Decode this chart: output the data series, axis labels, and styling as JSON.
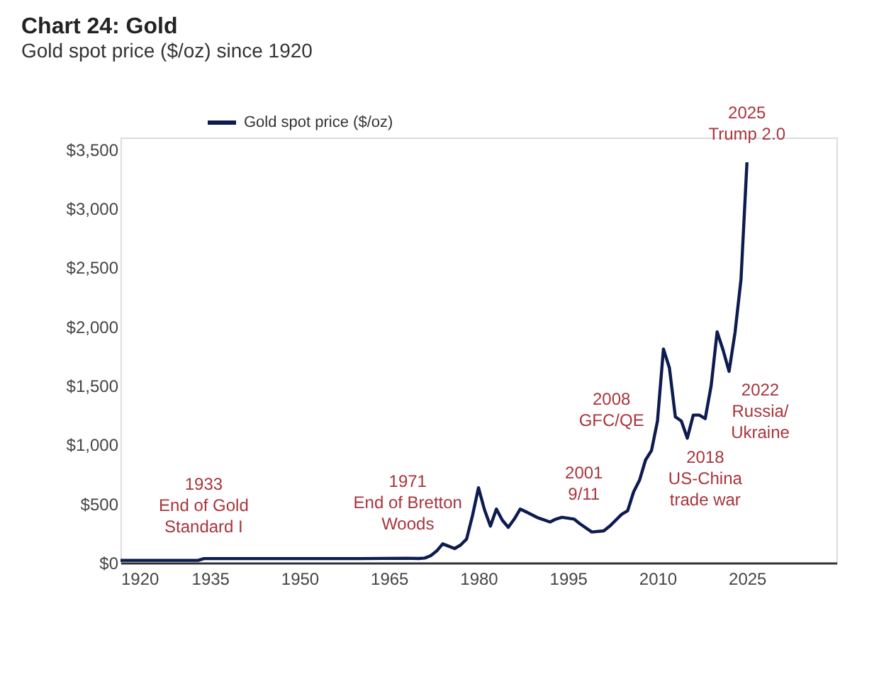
{
  "chart_data": {
    "type": "line",
    "title": "Chart 24: Gold",
    "subtitle": "Gold spot price ($/oz) since 1920",
    "x": [
      1920,
      1925,
      1930,
      1933,
      1934,
      1940,
      1950,
      1960,
      1968,
      1970,
      1971,
      1972,
      1973,
      1974,
      1975,
      1976,
      1977,
      1978,
      1979,
      1980,
      1981,
      1982,
      1983,
      1984,
      1985,
      1986,
      1987,
      1988,
      1990,
      1992,
      1993,
      1994,
      1996,
      1997,
      1999,
      2001,
      2002,
      2003,
      2004,
      2005,
      2006,
      2007,
      2008,
      2009,
      2010,
      2011,
      2012,
      2013,
      2014,
      2015,
      2016,
      2017,
      2018,
      2019,
      2020,
      2021,
      2022,
      2023,
      2024,
      2025
    ],
    "series": [
      {
        "name": "Gold spot price ($/oz)",
        "color": "#0d1b4f",
        "values": [
          20,
          20,
          20,
          20,
          35,
          35,
          35,
          35,
          38,
          36,
          40,
          60,
          100,
          160,
          140,
          120,
          150,
          200,
          400,
          635,
          450,
          310,
          455,
          360,
          300,
          370,
          455,
          430,
          380,
          345,
          370,
          385,
          370,
          330,
          260,
          270,
          310,
          360,
          410,
          440,
          600,
          700,
          870,
          950,
          1200,
          1810,
          1650,
          1235,
          1200,
          1055,
          1250,
          1250,
          1220,
          1500,
          1955,
          1800,
          1620,
          1950,
          2400,
          3390
        ]
      }
    ],
    "xlim": [
      1920,
      2040
    ],
    "xticks": [
      1920,
      1935,
      1950,
      1965,
      1980,
      1995,
      2010,
      2025
    ],
    "ylim": [
      0,
      3600
    ],
    "yticks": [
      {
        "value": 0,
        "label": "$0"
      },
      {
        "value": 500,
        "label": "$500"
      },
      {
        "value": 1000,
        "label": "$1,000"
      },
      {
        "value": 1500,
        "label": "$1,500"
      },
      {
        "value": 2000,
        "label": "$2,000"
      },
      {
        "value": 2500,
        "label": "$2,500"
      },
      {
        "value": 3000,
        "label": "$3,000"
      },
      {
        "value": 3500,
        "label": "$3,500"
      }
    ],
    "grid": false,
    "legend": "top",
    "line_style": "solid",
    "marker": "none",
    "annotations": [
      {
        "text": "1933\nEnd of Gold\nStandard I",
        "x": 1933,
        "y": 20
      },
      {
        "text": "1971\nEnd of Bretton\nWoods",
        "x": 1971,
        "y": 40
      },
      {
        "text": "2001\n9/11",
        "x": 2001,
        "y": 270
      },
      {
        "text": "2008\nGFC/QE",
        "x": 2008,
        "y": 870
      },
      {
        "text": "2018\nUS-China\ntrade war",
        "x": 2018,
        "y": 1220
      },
      {
        "text": "2022\nRussia/\nUkraine",
        "x": 2022,
        "y": 1620
      },
      {
        "text": "2025\nTrump 2.0",
        "x": 2025,
        "y": 3390
      }
    ]
  }
}
